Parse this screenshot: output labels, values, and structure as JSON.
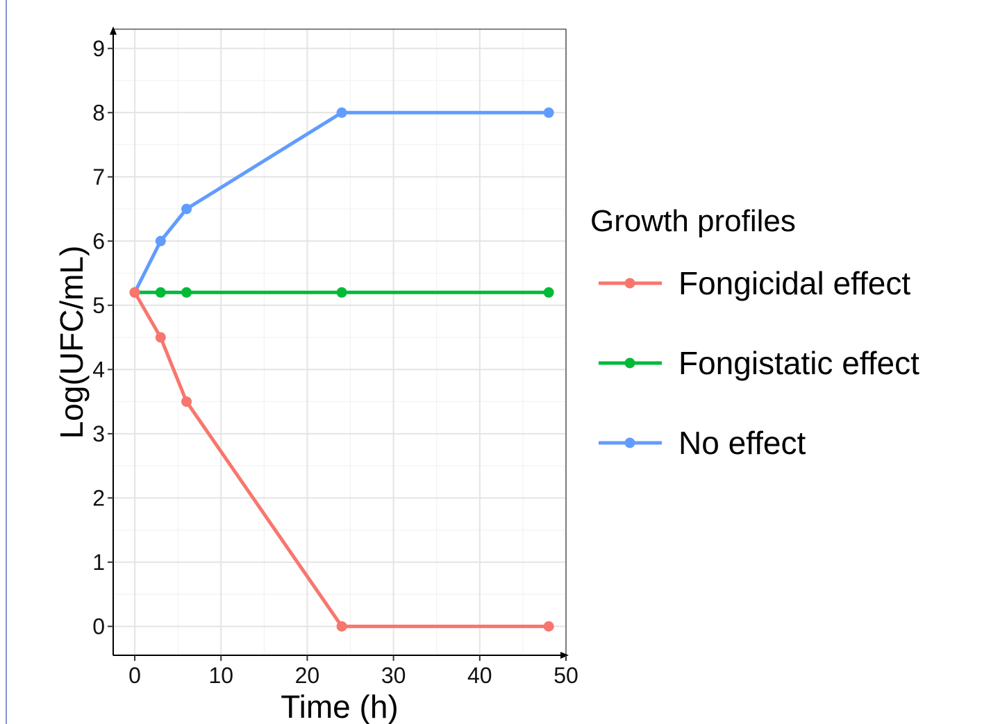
{
  "chart_data": {
    "type": "line",
    "xlabel": "Time (h)",
    "ylabel": "Log(UFC/mL)",
    "xlim": [
      -2.5,
      50
    ],
    "ylim": [
      -0.45,
      9.3
    ],
    "x_ticks": [
      0,
      10,
      20,
      30,
      40,
      50
    ],
    "y_ticks": [
      0,
      1,
      2,
      3,
      4,
      5,
      6,
      7,
      8,
      9
    ],
    "grid": true,
    "legend_title": "Growth profiles",
    "legend_placement": "right",
    "series": [
      {
        "name": "Fongicidal effect",
        "color": "#f8766d",
        "x": [
          0,
          3,
          6,
          24,
          48
        ],
        "y": [
          5.2,
          4.5,
          3.5,
          0,
          0
        ]
      },
      {
        "name": "Fongistatic effect",
        "color": "#00ba38",
        "x": [
          0,
          3,
          6,
          24,
          48
        ],
        "y": [
          5.2,
          5.2,
          5.2,
          5.2,
          5.2
        ]
      },
      {
        "name": "No effect",
        "color": "#619cff",
        "x": [
          0,
          3,
          6,
          24,
          48
        ],
        "y": [
          5.2,
          6,
          6.5,
          8,
          8
        ]
      }
    ]
  }
}
